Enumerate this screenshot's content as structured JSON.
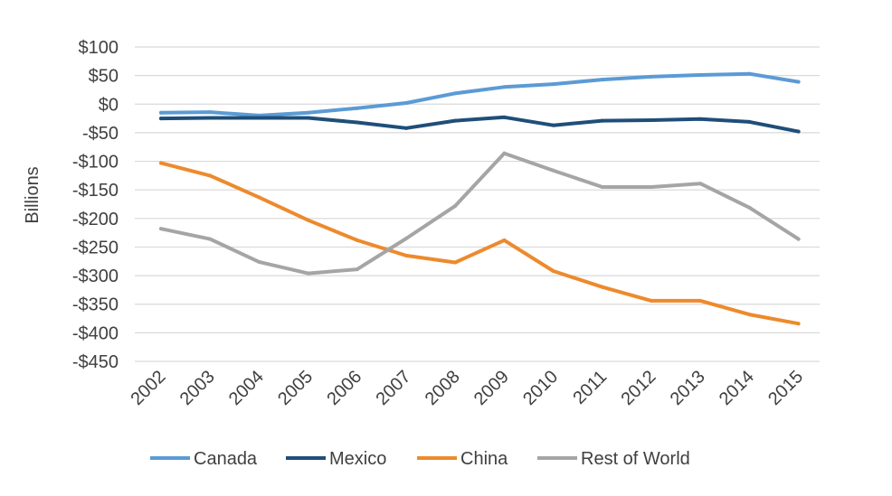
{
  "chart_data": {
    "type": "line",
    "title": "",
    "xlabel": "",
    "ylabel": "Billions",
    "x": [
      "2002",
      "2003",
      "2004",
      "2005",
      "2006",
      "2007",
      "2008",
      "2009",
      "2010",
      "2011",
      "2012",
      "2013",
      "2014",
      "2015"
    ],
    "ylim": [
      -450,
      100
    ],
    "yticks": [
      100,
      50,
      0,
      -50,
      -100,
      -150,
      -200,
      -250,
      -300,
      -350,
      -400,
      -450
    ],
    "ytick_labels": [
      "$100",
      "$50",
      "$0",
      "-$50",
      "-$100",
      "-$150",
      "-$200",
      "-$250",
      "-$300",
      "-$350",
      "-$400",
      "-$450"
    ],
    "grid": true,
    "legend_position": "bottom",
    "series": [
      {
        "name": "Canada",
        "color": "#5b9bd5",
        "values": [
          -15,
          -14,
          -20,
          -15,
          -7,
          2,
          19,
          30,
          35,
          43,
          48,
          51,
          53,
          39
        ]
      },
      {
        "name": "Mexico",
        "color": "#1f4e79",
        "values": [
          -25,
          -24,
          -24,
          -24,
          -32,
          -42,
          -29,
          -23,
          -37,
          -29,
          -28,
          -26,
          -31,
          -48
        ]
      },
      {
        "name": "China",
        "color": "#ed8a2d",
        "values": [
          -103,
          -125,
          -163,
          -203,
          -238,
          -265,
          -277,
          -238,
          -292,
          -320,
          -344,
          -344,
          -368,
          -384
        ]
      },
      {
        "name": "Rest of World",
        "color": "#a5a5a5",
        "values": [
          -218,
          -236,
          -276,
          -296,
          -289,
          -235,
          -178,
          -86,
          -116,
          -145,
          -145,
          -139,
          -181,
          -236
        ]
      }
    ]
  }
}
